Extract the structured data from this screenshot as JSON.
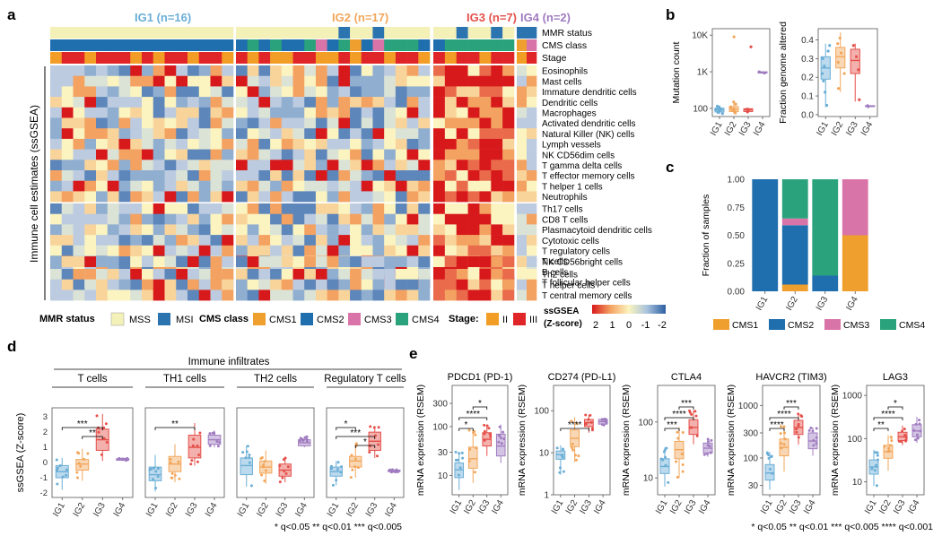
{
  "panels": {
    "a": "a",
    "b": "b",
    "c": "c",
    "d": "d",
    "e": "e"
  },
  "colors": {
    "ig1": "#6aaed6",
    "ig2": "#f2a65a",
    "ig3": "#e5504a",
    "ig4": "#a07cc0",
    "mss": "#f3f0b8",
    "msi": "#2b74b0",
    "cms1": "#ef9f2d",
    "cms2": "#1f6eae",
    "cms3": "#d974a8",
    "cms4": "#2aa37c",
    "stage2": "#f29e26",
    "stage3": "#e02528"
  },
  "heatmap": {
    "groups": [
      {
        "label": "IG1 (n=16)",
        "n": 16
      },
      {
        "label": "IG2 (n=17)",
        "n": 17
      },
      {
        "label": "IG3 (n=7)",
        "n": 7
      },
      {
        "label": "IG4 (n=2)",
        "n": 2
      }
    ],
    "annotation_tracks": [
      "MMR status",
      "CMS class",
      "Stage"
    ],
    "ylabel": "Immune cell estimates (ssGSEA)",
    "row_blocks": [
      [
        "Eosinophils",
        "Mast cells",
        "Immature dendritic cells",
        "Dendritic cells",
        "Macrophages",
        "Activated dendritic cells",
        "Natural Killer (NK) cells",
        "Lymph vessels",
        "NK CD56dim cells",
        "T gamma delta cells",
        "T effector memory cells",
        "T helper 1 cells",
        "Neutrophils"
      ],
      [
        "Th17 cells",
        "CD8 T cells",
        "Plasmacytoid dendritic cells",
        "Cytotoxic cells",
        "T regulatory cells",
        "T cells",
        "B cells",
        "T follicular helper cells"
      ],
      [
        "NK CD56bright cells"
      ],
      [
        "Th2 cells",
        "T helper cells",
        "T central memory cells"
      ]
    ],
    "legend": {
      "mmr_title": "MMR status",
      "mss": "MSS",
      "msi": "MSI",
      "cms_title": "CMS class",
      "cms1": "CMS1",
      "cms2": "CMS2",
      "cms3": "CMS3",
      "cms4": "CMS4",
      "stage_title": "Stage:",
      "stage2": "II",
      "stage3": "III",
      "scale_title1": "ssGSEA",
      "scale_title2": "(Z-score)",
      "scale_ticks": [
        "2",
        "1",
        "0",
        "-1",
        "-2"
      ]
    }
  },
  "chart_data": [
    {
      "panel": "b",
      "type": "boxplot",
      "ylabel": "Mutation count",
      "scale": "log",
      "categories": [
        "IG1",
        "IG2",
        "IG3",
        "IG4"
      ],
      "yticks": [
        {
          "label": "100",
          "v": 100
        },
        {
          "label": "1K",
          "v": 1000
        },
        {
          "label": "10K",
          "v": 10000
        }
      ],
      "ylim": [
        60,
        15000
      ],
      "boxes": [
        {
          "q1": 80,
          "med": 90,
          "q3": 102,
          "lo": 70,
          "hi": 120,
          "pts": [
            72,
            78,
            85,
            88,
            92,
            95,
            100,
            108,
            115
          ]
        },
        {
          "q1": 82,
          "med": 95,
          "q3": 112,
          "lo": 72,
          "hi": 160,
          "pts": [
            75,
            84,
            90,
            96,
            102,
            110,
            130,
            150,
            9000
          ]
        },
        {
          "q1": 82,
          "med": 92,
          "q3": 98,
          "lo": 78,
          "hi": 105,
          "pts": [
            80,
            90,
            95,
            4800
          ]
        },
        {
          "q1": 920,
          "med": 960,
          "q3": 1000,
          "lo": 900,
          "hi": 1020,
          "pts": [
            920,
            1000
          ]
        }
      ]
    },
    {
      "panel": "b",
      "type": "boxplot",
      "ylabel": "Fraction genome altered",
      "scale": "linear",
      "categories": [
        "IG1",
        "IG2",
        "IG3",
        "IG4"
      ],
      "yticks": [
        {
          "label": "0.0",
          "v": 0
        },
        {
          "label": "0.1",
          "v": 0.1
        },
        {
          "label": "0.2",
          "v": 0.2
        },
        {
          "label": "0.3",
          "v": 0.3
        },
        {
          "label": "0.4",
          "v": 0.4
        }
      ],
      "ylim": [
        -0.01,
        0.46
      ],
      "boxes": [
        {
          "q1": 0.19,
          "med": 0.25,
          "q3": 0.31,
          "lo": 0.04,
          "hi": 0.38,
          "pts": [
            0.05,
            0.12,
            0.18,
            0.22,
            0.26,
            0.3,
            0.34,
            0.37
          ]
        },
        {
          "q1": 0.25,
          "med": 0.31,
          "q3": 0.36,
          "lo": 0.12,
          "hi": 0.44,
          "pts": [
            0.14,
            0.22,
            0.28,
            0.33,
            0.38,
            0.41
          ]
        },
        {
          "q1": 0.22,
          "med": 0.29,
          "q3": 0.35,
          "lo": 0.07,
          "hi": 0.38,
          "pts": [
            0.08,
            0.24,
            0.31,
            0.37
          ]
        },
        {
          "q1": 0.043,
          "med": 0.045,
          "q3": 0.048,
          "lo": 0.042,
          "hi": 0.049,
          "pts": [
            0.043,
            0.048
          ]
        }
      ]
    },
    {
      "panel": "c",
      "type": "stacked_bar",
      "ylabel": "Fraction of samples",
      "categories": [
        "IG1",
        "IG2",
        "IG3",
        "IG4"
      ],
      "yticks": [
        "0.00",
        "0.25",
        "0.50",
        "0.75",
        "1.00"
      ],
      "series": [
        {
          "name": "CMS1",
          "values": [
            0,
            0.06,
            0,
            0.5
          ]
        },
        {
          "name": "CMS2",
          "values": [
            1.0,
            0.53,
            0.14,
            0
          ]
        },
        {
          "name": "CMS3",
          "values": [
            0,
            0.06,
            0,
            0.5
          ]
        },
        {
          "name": "CMS4",
          "values": [
            0,
            0.35,
            0.86,
            0
          ]
        }
      ]
    },
    {
      "panel": "d",
      "type": "boxplot",
      "title": "Immune infiltrates",
      "ylabel": "ssGSEA (Z-score)",
      "yticks": [
        "-2",
        "-1",
        "0",
        "1",
        "2",
        "3"
      ],
      "ylim": [
        -2.3,
        3.6
      ],
      "facets": [
        {
          "name": "T cells",
          "categories": [
            "IG1",
            "IG2",
            "IG3",
            "IG4"
          ],
          "boxes": [
            {
              "q1": -1.0,
              "med": -0.6,
              "q3": -0.2,
              "lo": -1.8,
              "hi": 0.3
            },
            {
              "q1": -0.5,
              "med": -0.1,
              "q3": 0.2,
              "lo": -1.2,
              "hi": 0.9
            },
            {
              "q1": 0.8,
              "med": 1.5,
              "q3": 2.2,
              "lo": 0.1,
              "hi": 3.2
            },
            {
              "q1": 0.15,
              "med": 0.2,
              "q3": 0.25,
              "lo": 0.1,
              "hi": 0.3
            }
          ],
          "sig": [
            {
              "a": 0,
              "b": 2,
              "label": "***"
            },
            {
              "a": 1,
              "b": 2,
              "label": "**"
            }
          ]
        },
        {
          "name": "TH1 cells",
          "categories": [
            "IG1",
            "IG2",
            "IG3",
            "IG4"
          ],
          "boxes": [
            {
              "q1": -1.2,
              "med": -0.8,
              "q3": -0.3,
              "lo": -1.9,
              "hi": 0.5
            },
            {
              "q1": -0.6,
              "med": -0.1,
              "q3": 0.4,
              "lo": -1.3,
              "hi": 1.2
            },
            {
              "q1": 0.3,
              "med": 1.0,
              "q3": 1.8,
              "lo": -0.2,
              "hi": 2.6
            },
            {
              "q1": 1.2,
              "med": 1.5,
              "q3": 1.8,
              "lo": 1.0,
              "hi": 2.1
            }
          ],
          "sig": [
            {
              "a": 0,
              "b": 2,
              "label": "**"
            }
          ]
        },
        {
          "name": "TH2 cells",
          "categories": [
            "IG1",
            "IG2",
            "IG3",
            "IG4"
          ],
          "boxes": [
            {
              "q1": -0.8,
              "med": -0.2,
              "q3": 0.3,
              "lo": -1.6,
              "hi": 1.1
            },
            {
              "q1": -0.7,
              "med": -0.3,
              "q3": 0.1,
              "lo": -1.4,
              "hi": 0.8
            },
            {
              "q1": -0.9,
              "med": -0.5,
              "q3": -0.1,
              "lo": -1.3,
              "hi": 0.3
            },
            {
              "q1": 1.1,
              "med": 1.3,
              "q3": 1.5,
              "lo": 1.0,
              "hi": 1.7
            }
          ],
          "sig": []
        },
        {
          "name": "Regulatory T cells",
          "categories": [
            "IG1",
            "IG2",
            "IG3",
            "IG4"
          ],
          "boxes": [
            {
              "q1": -0.9,
              "med": -0.6,
              "q3": -0.3,
              "lo": -1.5,
              "hi": 0.1
            },
            {
              "q1": -0.3,
              "med": 0.1,
              "q3": 0.4,
              "lo": -1.0,
              "hi": 1.3
            },
            {
              "q1": 0.8,
              "med": 1.4,
              "q3": 2.0,
              "lo": 0.3,
              "hi": 2.4
            },
            {
              "q1": -0.6,
              "med": -0.55,
              "q3": -0.5,
              "lo": -0.65,
              "hi": -0.45
            }
          ],
          "sig": [
            {
              "a": 0,
              "b": 1,
              "label": "*"
            },
            {
              "a": 0,
              "b": 2,
              "label": "***"
            },
            {
              "a": 1,
              "b": 2,
              "label": "*"
            }
          ]
        }
      ],
      "footnote": "* q<0.05 ** q<0.01 *** q<0.005"
    },
    {
      "panel": "e",
      "type": "boxplot",
      "ylabel": "mRNA expression (RSEM)",
      "scale": "log",
      "facets": [
        {
          "name": "PDCD1 (PD-1)",
          "yticks": [
            {
              "label": "10",
              "v": 10
            },
            {
              "label": "30",
              "v": 30
            },
            {
              "label": "100",
              "v": 100
            },
            {
              "label": "300",
              "v": 300
            }
          ],
          "ylim": [
            4,
            700
          ],
          "boxes": [
            {
              "q1": 9,
              "med": 13,
              "q3": 18,
              "lo": 5,
              "hi": 30
            },
            {
              "q1": 14,
              "med": 22,
              "q3": 38,
              "lo": 7,
              "hi": 90
            },
            {
              "q1": 40,
              "med": 55,
              "q3": 75,
              "lo": 25,
              "hi": 110
            },
            {
              "q1": 25,
              "med": 40,
              "q3": 70,
              "lo": 18,
              "hi": 110
            }
          ],
          "sig": [
            {
              "a": 0,
              "b": 1,
              "label": "*"
            },
            {
              "a": 0,
              "b": 2,
              "label": "****"
            },
            {
              "a": 1,
              "b": 2,
              "label": "*"
            }
          ]
        },
        {
          "name": "CD274 (PD-L1)",
          "yticks": [
            {
              "label": "1",
              "v": 1
            },
            {
              "label": "10",
              "v": 10
            },
            {
              "label": "100",
              "v": 100
            }
          ],
          "ylim": [
            1,
            400
          ],
          "boxes": [
            {
              "q1": 7,
              "med": 9,
              "q3": 11,
              "lo": 3,
              "hi": 15
            },
            {
              "q1": 14,
              "med": 22,
              "q3": 35,
              "lo": 6,
              "hi": 70
            },
            {
              "q1": 42,
              "med": 52,
              "q3": 62,
              "lo": 30,
              "hi": 80
            },
            {
              "q1": 48,
              "med": 55,
              "q3": 62,
              "lo": 44,
              "hi": 68
            }
          ],
          "sig": [
            {
              "a": 0,
              "b": 2,
              "label": "****"
            }
          ]
        },
        {
          "name": "CTLA4",
          "yticks": [
            {
              "label": "10",
              "v": 10
            },
            {
              "label": "100",
              "v": 100
            }
          ],
          "ylim": [
            5,
            450
          ],
          "boxes": [
            {
              "q1": 12,
              "med": 16,
              "q3": 22,
              "lo": 7,
              "hi": 35
            },
            {
              "q1": 22,
              "med": 32,
              "q3": 45,
              "lo": 10,
              "hi": 80
            },
            {
              "q1": 60,
              "med": 80,
              "q3": 110,
              "lo": 40,
              "hi": 160
            },
            {
              "q1": 28,
              "med": 34,
              "q3": 42,
              "lo": 24,
              "hi": 50
            }
          ],
          "sig": [
            {
              "a": 0,
              "b": 1,
              "label": "***"
            },
            {
              "a": 0,
              "b": 2,
              "label": "****"
            },
            {
              "a": 1,
              "b": 2,
              "label": "***"
            }
          ]
        },
        {
          "name": "HAVCR2 (TIM3)",
          "yticks": [
            {
              "label": "30",
              "v": 30
            },
            {
              "label": "100",
              "v": 100
            },
            {
              "label": "300",
              "v": 300
            },
            {
              "label": "1000",
              "v": 1000
            }
          ],
          "ylim": [
            20,
            2400
          ],
          "boxes": [
            {
              "q1": 38,
              "med": 52,
              "q3": 75,
              "lo": 25,
              "hi": 130
            },
            {
              "q1": 110,
              "med": 160,
              "q3": 230,
              "lo": 55,
              "hi": 400
            },
            {
              "q1": 280,
              "med": 380,
              "q3": 520,
              "lo": 180,
              "hi": 700
            },
            {
              "q1": 150,
              "med": 210,
              "q3": 300,
              "lo": 110,
              "hi": 380
            }
          ],
          "sig": [
            {
              "a": 0,
              "b": 1,
              "label": "****"
            },
            {
              "a": 0,
              "b": 2,
              "label": "****"
            },
            {
              "a": 1,
              "b": 2,
              "label": "***"
            }
          ]
        },
        {
          "name": "LAG3",
          "yticks": [
            {
              "label": "10",
              "v": 10
            },
            {
              "label": "100",
              "v": 100
            },
            {
              "label": "1000",
              "v": 1000
            }
          ],
          "ylim": [
            5,
            1700
          ],
          "boxes": [
            {
              "q1": 15,
              "med": 22,
              "q3": 32,
              "lo": 8,
              "hi": 55
            },
            {
              "q1": 35,
              "med": 50,
              "q3": 70,
              "lo": 18,
              "hi": 120
            },
            {
              "q1": 90,
              "med": 110,
              "q3": 140,
              "lo": 70,
              "hi": 200
            },
            {
              "q1": 110,
              "med": 150,
              "q3": 210,
              "lo": 80,
              "hi": 320
            }
          ],
          "sig": [
            {
              "a": 0,
              "b": 1,
              "label": "**"
            },
            {
              "a": 0,
              "b": 2,
              "label": "****"
            },
            {
              "a": 1,
              "b": 2,
              "label": "*"
            }
          ]
        }
      ],
      "footnote": "* q<0.05 ** q<0.01 *** q<0.005 **** q<0.001"
    }
  ]
}
